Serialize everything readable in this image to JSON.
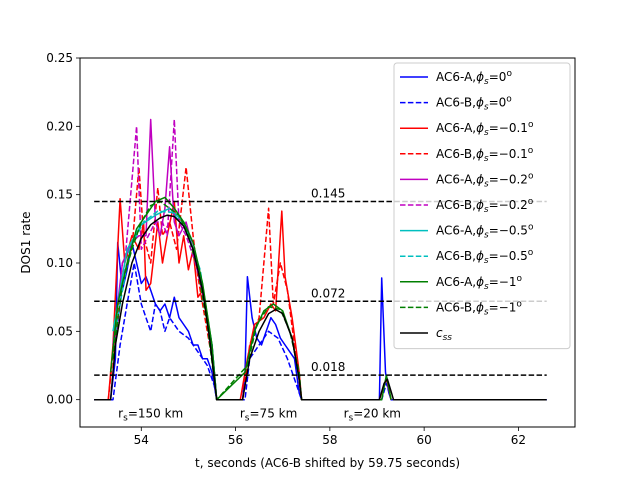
{
  "chart_data": {
    "type": "line",
    "xlabel": "t, seconds (AC6-B shifted by 59.75 seconds)",
    "ylabel": "DOS1 rate",
    "xlim": [
      52.7,
      63.2
    ],
    "ylim": [
      -0.02,
      0.25
    ],
    "xticks": [
      54,
      56,
      58,
      60,
      62
    ],
    "yticks": [
      0.0,
      0.05,
      0.1,
      0.15,
      0.2,
      0.25
    ],
    "legend_position": "upper right",
    "series": [
      {
        "name": "AC6-A,ϕ_s=0°",
        "sub": "s",
        "val": "=0",
        "color": "#0000ff",
        "dash": false,
        "points": [
          [
            53.0,
            0
          ],
          [
            53.35,
            0
          ],
          [
            53.45,
            0.03
          ],
          [
            53.5,
            0.115
          ],
          [
            53.6,
            0.08
          ],
          [
            53.7,
            0.095
          ],
          [
            53.8,
            0.115
          ],
          [
            53.9,
            0.1
          ],
          [
            54.0,
            0.085
          ],
          [
            54.1,
            0.09
          ],
          [
            54.2,
            0.08
          ],
          [
            54.3,
            0.07
          ],
          [
            54.4,
            0.065
          ],
          [
            54.5,
            0.07
          ],
          [
            54.6,
            0.06
          ],
          [
            54.7,
            0.075
          ],
          [
            54.8,
            0.06
          ],
          [
            54.9,
            0.055
          ],
          [
            55.0,
            0.05
          ],
          [
            55.1,
            0.04
          ],
          [
            55.2,
            0.04
          ],
          [
            55.3,
            0.03
          ],
          [
            55.4,
            0.03
          ],
          [
            55.5,
            0.02
          ],
          [
            55.55,
            0.01
          ],
          [
            55.6,
            0
          ],
          [
            56.15,
            0
          ],
          [
            56.2,
            0.02
          ],
          [
            56.25,
            0.09
          ],
          [
            56.35,
            0.06
          ],
          [
            56.45,
            0.045
          ],
          [
            56.55,
            0.04
          ],
          [
            56.65,
            0.05
          ],
          [
            56.75,
            0.06
          ],
          [
            56.85,
            0.055
          ],
          [
            56.95,
            0.045
          ],
          [
            57.05,
            0.04
          ],
          [
            57.15,
            0.035
          ],
          [
            57.25,
            0.03
          ],
          [
            57.35,
            0.005
          ],
          [
            57.4,
            0
          ],
          [
            59.05,
            0
          ],
          [
            59.1,
            0.089
          ],
          [
            59.18,
            0.02
          ],
          [
            59.25,
            0.005
          ],
          [
            59.3,
            0
          ],
          [
            62.6,
            0
          ]
        ]
      },
      {
        "name": "AC6-B,ϕ_s=0°",
        "sub": "s",
        "val": "=0",
        "color": "#0000ff",
        "dash": true,
        "points": [
          [
            53.0,
            0
          ],
          [
            53.4,
            0
          ],
          [
            53.55,
            0.04
          ],
          [
            53.7,
            0.07
          ],
          [
            53.85,
            0.1
          ],
          [
            54.0,
            0.07
          ],
          [
            54.1,
            0.06
          ],
          [
            54.2,
            0.05
          ],
          [
            54.3,
            0.07
          ],
          [
            54.4,
            0.065
          ],
          [
            54.5,
            0.05
          ],
          [
            54.6,
            0.06
          ],
          [
            54.7,
            0.055
          ],
          [
            54.8,
            0.05
          ],
          [
            55.0,
            0.045
          ],
          [
            55.2,
            0.035
          ],
          [
            55.4,
            0.025
          ],
          [
            55.55,
            0.01
          ],
          [
            55.6,
            0
          ],
          [
            56.2,
            0
          ],
          [
            56.3,
            0.03
          ],
          [
            56.5,
            0.04
          ],
          [
            56.7,
            0.05
          ],
          [
            56.9,
            0.045
          ],
          [
            57.1,
            0.03
          ],
          [
            57.3,
            0.01
          ],
          [
            57.4,
            0
          ],
          [
            59.1,
            0
          ],
          [
            59.2,
            0.012
          ],
          [
            59.3,
            0
          ],
          [
            62.6,
            0
          ]
        ]
      },
      {
        "name": "AC6-A,ϕ_s=−0.1°",
        "sub": "s",
        "val": "=−0.1",
        "color": "#ff0000",
        "dash": false,
        "points": [
          [
            53.3,
            0
          ],
          [
            53.4,
            0.04
          ],
          [
            53.55,
            0.147
          ],
          [
            53.65,
            0.1
          ],
          [
            53.8,
            0.12
          ],
          [
            53.95,
            0.11
          ],
          [
            54.05,
            0.13
          ],
          [
            54.1,
            0.08
          ],
          [
            54.2,
            0.085
          ],
          [
            54.35,
            0.13
          ],
          [
            54.45,
            0.1
          ],
          [
            54.55,
            0.12
          ],
          [
            54.7,
            0.145
          ],
          [
            54.8,
            0.1
          ],
          [
            54.9,
            0.12
          ],
          [
            55.0,
            0.095
          ],
          [
            55.1,
            0.11
          ],
          [
            55.2,
            0.075
          ],
          [
            55.3,
            0.08
          ],
          [
            55.45,
            0.05
          ],
          [
            55.55,
            0.02
          ],
          [
            55.6,
            0
          ],
          [
            56.1,
            0
          ],
          [
            56.25,
            0.03
          ],
          [
            56.4,
            0.055
          ],
          [
            56.6,
            0.06
          ],
          [
            56.75,
            0.07
          ],
          [
            56.85,
            0.065
          ],
          [
            56.98,
            0.138
          ],
          [
            57.05,
            0.09
          ],
          [
            57.2,
            0.06
          ],
          [
            57.35,
            0.02
          ],
          [
            57.4,
            0
          ],
          [
            59.05,
            0
          ],
          [
            59.2,
            0.016
          ],
          [
            59.3,
            0
          ]
        ]
      },
      {
        "name": "AC6-B,ϕ_s=−0.1°",
        "sub": "s",
        "val": "=−0.1",
        "color": "#ff0000",
        "dash": true,
        "points": [
          [
            53.3,
            0
          ],
          [
            53.45,
            0.05
          ],
          [
            53.6,
            0.1
          ],
          [
            53.8,
            0.11
          ],
          [
            53.95,
            0.17
          ],
          [
            54.05,
            0.12
          ],
          [
            54.2,
            0.1
          ],
          [
            54.35,
            0.155
          ],
          [
            54.45,
            0.12
          ],
          [
            54.6,
            0.13
          ],
          [
            54.75,
            0.11
          ],
          [
            54.85,
            0.14
          ],
          [
            54.95,
            0.17
          ],
          [
            55.1,
            0.12
          ],
          [
            55.2,
            0.09
          ],
          [
            55.35,
            0.06
          ],
          [
            55.5,
            0.03
          ],
          [
            55.6,
            0
          ],
          [
            56.15,
            0
          ],
          [
            56.3,
            0.04
          ],
          [
            56.5,
            0.06
          ],
          [
            56.7,
            0.14
          ],
          [
            56.8,
            0.07
          ],
          [
            56.95,
            0.1
          ],
          [
            57.1,
            0.08
          ],
          [
            57.25,
            0.04
          ],
          [
            57.4,
            0
          ]
        ]
      },
      {
        "name": "AC6-A,ϕ_s=−0.2°",
        "sub": "s",
        "val": "=−0.2",
        "color": "#c000c0",
        "dash": false,
        "points": [
          [
            53.4,
            0.04
          ],
          [
            53.6,
            0.1
          ],
          [
            53.8,
            0.115
          ],
          [
            53.95,
            0.12
          ],
          [
            54.1,
            0.12
          ],
          [
            54.2,
            0.205
          ],
          [
            54.3,
            0.13
          ],
          [
            54.4,
            0.12
          ],
          [
            54.5,
            0.14
          ],
          [
            54.6,
            0.185
          ],
          [
            54.7,
            0.13
          ],
          [
            54.8,
            0.12
          ],
          [
            54.95,
            0.13
          ],
          [
            55.1,
            0.11
          ],
          [
            55.3,
            0.08
          ],
          [
            55.5,
            0.04
          ],
          [
            55.6,
            0
          ]
        ]
      },
      {
        "name": "AC6-B,ϕ_s=−0.2°",
        "sub": "s",
        "val": "=−0.2",
        "color": "#c000c0",
        "dash": true,
        "points": [
          [
            53.45,
            0.04
          ],
          [
            53.65,
            0.1
          ],
          [
            53.9,
            0.2
          ],
          [
            54.0,
            0.11
          ],
          [
            54.15,
            0.12
          ],
          [
            54.3,
            0.13
          ],
          [
            54.45,
            0.13
          ],
          [
            54.55,
            0.12
          ],
          [
            54.7,
            0.205
          ],
          [
            54.8,
            0.13
          ],
          [
            54.95,
            0.12
          ],
          [
            55.15,
            0.1
          ],
          [
            55.35,
            0.07
          ],
          [
            55.5,
            0.03
          ],
          [
            55.6,
            0
          ]
        ]
      },
      {
        "name": "AC6-A,ϕ_s=−0.5°",
        "sub": "s",
        "val": "=−0.5",
        "color": "#00bfbf",
        "dash": false,
        "points": [
          [
            53.4,
            0.05
          ],
          [
            53.7,
            0.11
          ],
          [
            54.0,
            0.128
          ],
          [
            54.3,
            0.135
          ],
          [
            54.6,
            0.14
          ],
          [
            54.9,
            0.13
          ],
          [
            55.2,
            0.1
          ],
          [
            55.5,
            0.04
          ],
          [
            55.6,
            0
          ]
        ]
      },
      {
        "name": "AC6-B,ϕ_s=−0.5°",
        "sub": "s",
        "val": "=−0.5",
        "color": "#00bfbf",
        "dash": true,
        "points": [
          [
            53.45,
            0.05
          ],
          [
            53.75,
            0.11
          ],
          [
            54.05,
            0.13
          ],
          [
            54.35,
            0.138
          ],
          [
            54.65,
            0.137
          ],
          [
            54.95,
            0.125
          ],
          [
            55.25,
            0.095
          ],
          [
            55.5,
            0.04
          ],
          [
            55.6,
            0
          ]
        ]
      },
      {
        "name": "AC6-A,ϕ_s=−1°",
        "sub": "s",
        "val": "=−1",
        "color": "#007f00",
        "dash": false,
        "points": [
          [
            53.35,
            0.02
          ],
          [
            53.5,
            0.07
          ],
          [
            53.7,
            0.1
          ],
          [
            53.9,
            0.125
          ],
          [
            54.1,
            0.135
          ],
          [
            54.3,
            0.145
          ],
          [
            54.5,
            0.148
          ],
          [
            54.7,
            0.14
          ],
          [
            54.9,
            0.13
          ],
          [
            55.1,
            0.115
          ],
          [
            55.3,
            0.085
          ],
          [
            55.5,
            0.04
          ],
          [
            55.6,
            0
          ],
          [
            56.2,
            0.02
          ],
          [
            56.4,
            0.05
          ],
          [
            56.6,
            0.065
          ],
          [
            56.8,
            0.07
          ],
          [
            57.0,
            0.065
          ],
          [
            57.2,
            0.045
          ],
          [
            57.35,
            0.015
          ],
          [
            57.4,
            0
          ],
          [
            59.1,
            0
          ],
          [
            59.2,
            0.018
          ],
          [
            59.3,
            0
          ]
        ]
      },
      {
        "name": "AC6-B,ϕ_s=−1°",
        "sub": "s",
        "val": "=−1",
        "color": "#007f00",
        "dash": true,
        "points": [
          [
            53.4,
            0.03
          ],
          [
            53.6,
            0.085
          ],
          [
            53.8,
            0.11
          ],
          [
            54.0,
            0.13
          ],
          [
            54.2,
            0.142
          ],
          [
            54.4,
            0.145
          ],
          [
            54.6,
            0.14
          ],
          [
            54.8,
            0.135
          ],
          [
            55.0,
            0.12
          ],
          [
            55.2,
            0.095
          ],
          [
            55.4,
            0.055
          ],
          [
            55.6,
            0
          ],
          [
            56.25,
            0.025
          ],
          [
            56.45,
            0.055
          ],
          [
            56.7,
            0.068
          ],
          [
            56.95,
            0.066
          ],
          [
            57.15,
            0.05
          ],
          [
            57.35,
            0.02
          ],
          [
            57.4,
            0
          ]
        ]
      },
      {
        "name": "c_ss",
        "sub": "ss",
        "val": "",
        "color": "#000000",
        "dash": false,
        "points": [
          [
            53.0,
            0
          ],
          [
            53.35,
            0
          ],
          [
            53.45,
            0.04
          ],
          [
            53.6,
            0.07
          ],
          [
            53.8,
            0.1
          ],
          [
            54.0,
            0.118
          ],
          [
            54.2,
            0.128
          ],
          [
            54.4,
            0.133
          ],
          [
            54.55,
            0.135
          ],
          [
            54.7,
            0.134
          ],
          [
            54.9,
            0.127
          ],
          [
            55.1,
            0.11
          ],
          [
            55.3,
            0.08
          ],
          [
            55.45,
            0.045
          ],
          [
            55.6,
            0
          ],
          [
            56.15,
            0
          ],
          [
            56.3,
            0.03
          ],
          [
            56.5,
            0.05
          ],
          [
            56.7,
            0.063
          ],
          [
            56.85,
            0.066
          ],
          [
            57.0,
            0.063
          ],
          [
            57.2,
            0.045
          ],
          [
            57.35,
            0.015
          ],
          [
            57.4,
            0
          ],
          [
            59.05,
            0
          ],
          [
            59.15,
            0.012
          ],
          [
            59.22,
            0.015
          ],
          [
            59.3,
            0.006
          ],
          [
            59.35,
            0
          ],
          [
            62.6,
            0
          ]
        ]
      }
    ],
    "reference_lines": [
      {
        "y": 0.145,
        "label": "0.145"
      },
      {
        "y": 0.072,
        "label": "0.072"
      },
      {
        "y": 0.018,
        "label": "0.018"
      }
    ],
    "region_labels": [
      {
        "x": 54.2,
        "text_main": "r",
        "text_sub": "s",
        "text_rest": "=150 km"
      },
      {
        "x": 56.7,
        "text_main": "r",
        "text_sub": "s",
        "text_rest": "=75 km"
      },
      {
        "x": 58.9,
        "text_main": "r",
        "text_sub": "s",
        "text_rest": "=20 km"
      }
    ]
  }
}
